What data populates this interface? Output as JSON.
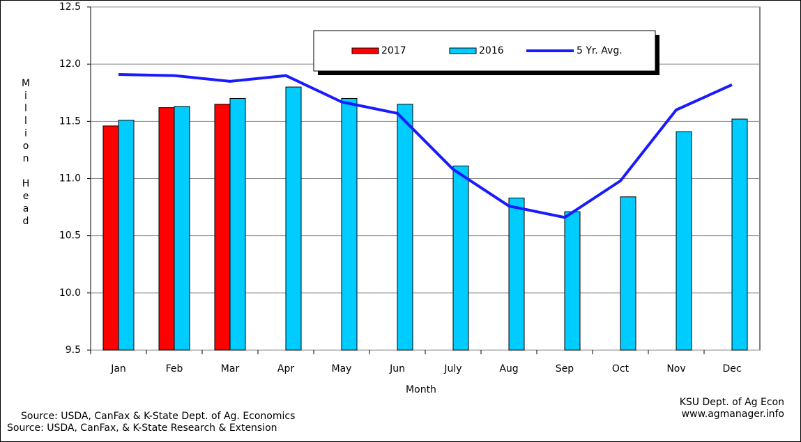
{
  "chart_data": {
    "type": "bar",
    "categories": [
      "Jan",
      "Feb",
      "Mar",
      "Apr",
      "May",
      "Jun",
      "July",
      "Aug",
      "Sep",
      "Oct",
      "Nov",
      "Dec"
    ],
    "series": [
      {
        "name": "2017",
        "color": "#ff0000",
        "values": [
          11.46,
          11.62,
          11.65,
          null,
          null,
          null,
          null,
          null,
          null,
          null,
          null,
          null
        ]
      },
      {
        "name": "2016",
        "color": "#00ccff",
        "values": [
          11.51,
          11.63,
          11.7,
          11.8,
          11.7,
          11.65,
          11.11,
          10.83,
          10.71,
          10.84,
          11.41,
          11.52
        ]
      },
      {
        "name": "5 Yr. Avg.",
        "color": "#1a1aff",
        "type": "line",
        "values": [
          11.91,
          11.9,
          11.85,
          11.9,
          11.67,
          11.57,
          11.08,
          10.76,
          10.66,
          10.98,
          11.6,
          11.82
        ]
      }
    ],
    "ylabel": "Million Head",
    "xlabel": "Month",
    "ylim": [
      9.5,
      12.5
    ],
    "yticks": [
      9.5,
      {
        "value": 10,
        "label": "10.0"
      },
      10.5,
      {
        "value": 11,
        "label": "11.0"
      },
      11.5,
      {
        "value": 12,
        "label": "12.0"
      },
      12.5
    ],
    "grid": true,
    "annotations": [
      "Source: USDA, CanFax & K-State  Dept. of  Ag. Economics",
      "Source: USDA, CanFax, & K-State Research & Extension",
      "KSU Dept. of Ag Econ",
      "www.agmanager.info"
    ]
  }
}
